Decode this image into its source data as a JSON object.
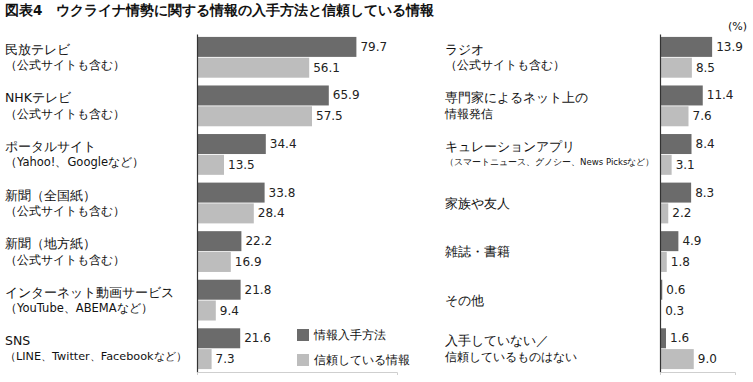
{
  "chart_data": [
    {
      "type": "bar",
      "orientation": "horizontal",
      "title": "図表4　ウクライナ情勢に関する情報の入手方法と信頼している情報",
      "categories": [
        "民放テレビ\n（公式サイトも含む）",
        "NHKテレビ\n（公式サイトも含む）",
        "ポータルサイト\n（Yahoo!、Googleなど）",
        "新聞（全国紙）\n（公式サイトも含む）",
        "新聞（地方紙）\n（公式サイトも含む）",
        "インターネット動画サービス\n（YouTube、ABEMAなど）",
        "SNS\n（LINE、Twitter、Facebookなど）"
      ],
      "series": [
        {
          "name": "情報入手方法",
          "color": "#6b6b6b",
          "values": [
            79.7,
            65.9,
            34.4,
            33.8,
            22.2,
            21.8,
            21.6
          ]
        },
        {
          "name": "信頼している情報",
          "color": "#bdbdbd",
          "values": [
            56.1,
            57.5,
            13.5,
            28.4,
            16.9,
            9.4,
            7.3
          ]
        }
      ],
      "xlim": [
        0,
        100
      ],
      "xticks": [],
      "tick_labels": false,
      "grid": false,
      "data_labels": true,
      "legend": "lower right"
    },
    {
      "type": "bar",
      "orientation": "horizontal",
      "subtitle": "(%)",
      "categories": [
        "ラジオ\n（公式サイトも含む）",
        "専門家によるネット上の\n情報発信",
        "キュレーションアプリ\n（スマートニュース、グノシー、News Picksなど）",
        "家族や友人",
        "雑誌・書籍",
        "その他",
        "入手していない／\n信頼しているものはない"
      ],
      "series": [
        {
          "color": "#6b6b6b",
          "values": [
            13.9,
            11.4,
            8.4,
            8.3,
            4.9,
            0.6,
            1.6
          ]
        },
        {
          "color": "#bdbdbd",
          "values": [
            8.5,
            7.6,
            3.1,
            2.2,
            1.8,
            0.3,
            9.0
          ],
          "value_labels": [
            "8.5",
            "7.6",
            "3.1",
            "2.2",
            "1.8",
            "0.3",
            "9.0"
          ]
        }
      ],
      "xlim": [
        0,
        20
      ],
      "xticks": [],
      "tick_labels": false,
      "grid": false,
      "data_labels": true
    }
  ]
}
